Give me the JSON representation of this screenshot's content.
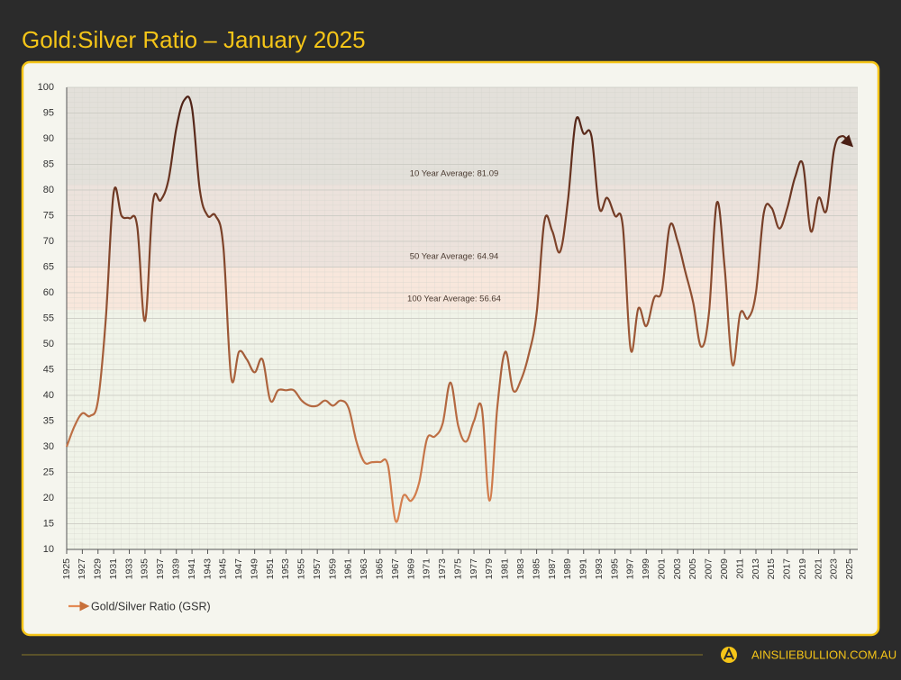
{
  "chart_data": {
    "type": "line",
    "title": "Gold:Silver Ratio – January 2025",
    "x": [
      1925,
      1926,
      1927,
      1928,
      1929,
      1930,
      1931,
      1932,
      1933,
      1934,
      1935,
      1936,
      1937,
      1938,
      1939,
      1940,
      1941,
      1942,
      1943,
      1944,
      1945,
      1946,
      1947,
      1948,
      1949,
      1950,
      1951,
      1952,
      1953,
      1954,
      1955,
      1956,
      1957,
      1958,
      1959,
      1960,
      1961,
      1962,
      1963,
      1964,
      1965,
      1966,
      1967,
      1968,
      1969,
      1970,
      1971,
      1972,
      1973,
      1974,
      1975,
      1976,
      1977,
      1978,
      1979,
      1980,
      1981,
      1982,
      1983,
      1984,
      1985,
      1986,
      1987,
      1988,
      1989,
      1990,
      1991,
      1992,
      1993,
      1994,
      1995,
      1996,
      1997,
      1998,
      1999,
      2000,
      2001,
      2002,
      2003,
      2004,
      2005,
      2006,
      2007,
      2008,
      2009,
      2010,
      2011,
      2012,
      2013,
      2014,
      2015,
      2016,
      2017,
      2018,
      2019,
      2020,
      2021,
      2022,
      2023,
      2024,
      2025
    ],
    "series": [
      {
        "name": "Gold/Silver Ratio (GSR)",
        "colors": [
          "#4a1f14",
          "#e48a55"
        ],
        "values": [
          30,
          34,
          36.5,
          36,
          39,
          55,
          79.5,
          75,
          74.5,
          73,
          54.5,
          77.5,
          78,
          82,
          92,
          97.5,
          96,
          80,
          75,
          75,
          69,
          43.5,
          48.5,
          47,
          44.5,
          47,
          39,
          41,
          41,
          41,
          39,
          38,
          38,
          39,
          38,
          39,
          37.5,
          31,
          27,
          27,
          27,
          26.5,
          15.5,
          20.5,
          19.5,
          23,
          31.5,
          32,
          34.5,
          42.5,
          34,
          31,
          35,
          37.5,
          19.5,
          38,
          48.5,
          41,
          43,
          48,
          56,
          74,
          72,
          68,
          78,
          93.5,
          91,
          90.5,
          76.5,
          78.5,
          75,
          73,
          49,
          57,
          53.5,
          59,
          60.5,
          73,
          70,
          64,
          58,
          49.5,
          56,
          77.5,
          65,
          46,
          56,
          55,
          60,
          75.5,
          76.5,
          72.5,
          76.5,
          82.5,
          85,
          72,
          78.5,
          76,
          88,
          90.5,
          89
        ]
      }
    ],
    "annotations": [
      {
        "label": "10 Year Average: 81.09",
        "value": 81.09,
        "color": "#e3e0da"
      },
      {
        "label": "50 Year Average: 64.94",
        "value": 64.94,
        "color": "#ece2dc"
      },
      {
        "label": "100 Year Average: 56.64",
        "value": 56.64,
        "color": "#f8e7dc"
      }
    ],
    "below_color": "#f0f3e8",
    "xlim": [
      1925,
      2026
    ],
    "xticks": [
      1925,
      1927,
      1929,
      1931,
      1933,
      1935,
      1937,
      1939,
      1941,
      1943,
      1945,
      1947,
      1949,
      1951,
      1953,
      1955,
      1957,
      1959,
      1961,
      1963,
      1965,
      1967,
      1969,
      1971,
      1973,
      1975,
      1977,
      1979,
      1981,
      1983,
      1985,
      1987,
      1989,
      1991,
      1993,
      1995,
      1997,
      1999,
      2001,
      2003,
      2005,
      2007,
      2009,
      2011,
      2013,
      2015,
      2017,
      2019,
      2021,
      2023,
      2025
    ],
    "ylim": [
      10,
      100
    ],
    "yticks": [
      10,
      15,
      20,
      25,
      30,
      35,
      40,
      45,
      50,
      55,
      60,
      65,
      70,
      75,
      80,
      85,
      90,
      95,
      100
    ],
    "grid": true
  },
  "footer": {
    "brand": "AINSLIEBULLION.COM.AU"
  }
}
